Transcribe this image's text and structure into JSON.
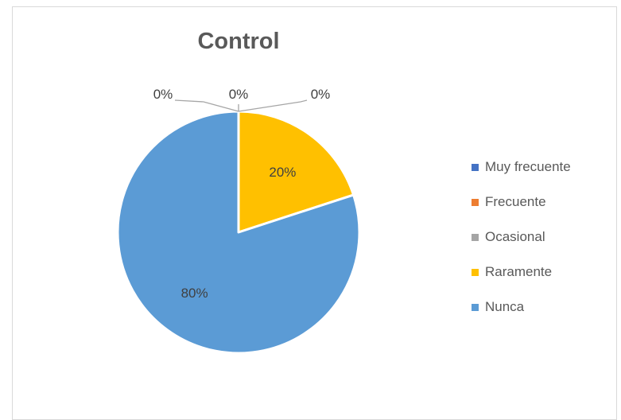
{
  "chart_data": {
    "type": "pie",
    "title": "Control",
    "categories": [
      "Muy frecuente",
      "Frecuente",
      "Ocasional",
      "Raramente",
      "Nunca"
    ],
    "values": [
      0,
      0,
      0,
      20,
      80
    ],
    "labels": [
      "0%",
      "0%",
      "0%",
      "20%",
      "80%"
    ],
    "colors": [
      "#4472C4",
      "#ED7D31",
      "#A5A5A5",
      "#FFC000",
      "#5B9BD5"
    ],
    "legend_position": "right"
  }
}
